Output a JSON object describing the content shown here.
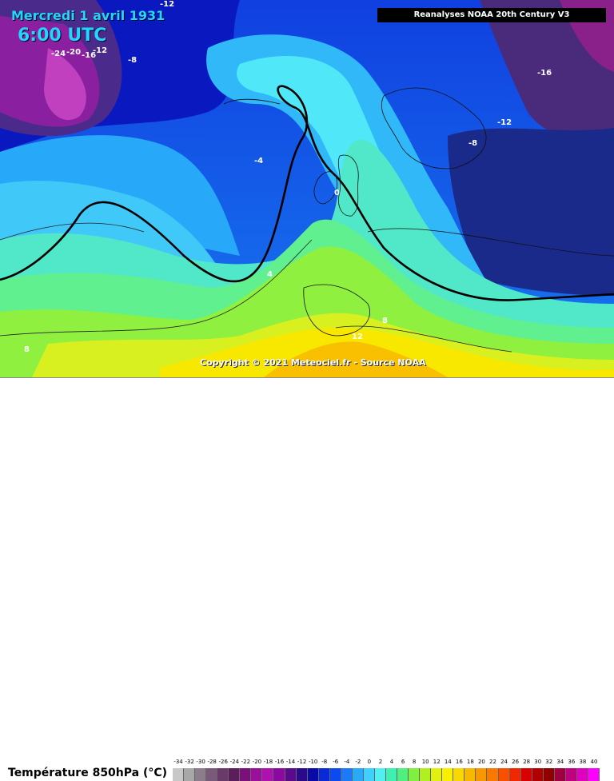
{
  "header": {
    "date": "Mercredi 1 avril 1931",
    "time": "6:00 UTC",
    "source": "Reanalyses NOAA 20th Century V3"
  },
  "copyright": "Copyright © 2021 Meteociel.fr - Source NOAA",
  "legend": {
    "title": "Température 850hPa (°C)",
    "ticks": [
      "-34",
      "-32",
      "-30",
      "-28",
      "-26",
      "-24",
      "-22",
      "-20",
      "-18",
      "-16",
      "-14",
      "-12",
      "-10",
      "-8",
      "-6",
      "-4",
      "-2",
      "0",
      "2",
      "4",
      "6",
      "8",
      "10",
      "12",
      "14",
      "16",
      "18",
      "20",
      "22",
      "24",
      "26",
      "28",
      "30",
      "32",
      "34",
      "36",
      "38",
      "40"
    ],
    "colors": [
      "#c8c8c8",
      "#a8a8a8",
      "#8c7d8c",
      "#7a5a7a",
      "#6a3a6a",
      "#5a1e5a",
      "#7a107a",
      "#9a109a",
      "#b010b0",
      "#8a0aa0",
      "#5a0a8a",
      "#2a0a8a",
      "#0a0aa8",
      "#0a2ad8",
      "#0a4af0",
      "#1a7af8",
      "#28aaf8",
      "#40d0ff",
      "#50f0f0",
      "#40f0b0",
      "#50f080",
      "#80f040",
      "#b0f020",
      "#e0f010",
      "#f8f000",
      "#f8d800",
      "#f8b800",
      "#f89800",
      "#f87800",
      "#f85000",
      "#f02800",
      "#d80000",
      "#b00000",
      "#900000",
      "#a00040",
      "#c00080",
      "#e000c0",
      "#ff00ff"
    ]
  },
  "isotherm_labels": [
    "-12",
    "-24",
    "-20",
    "-16",
    "-12",
    "-8",
    "-16",
    "-12",
    "-8",
    "-4",
    "0",
    "4",
    "8",
    "12",
    "8"
  ]
}
